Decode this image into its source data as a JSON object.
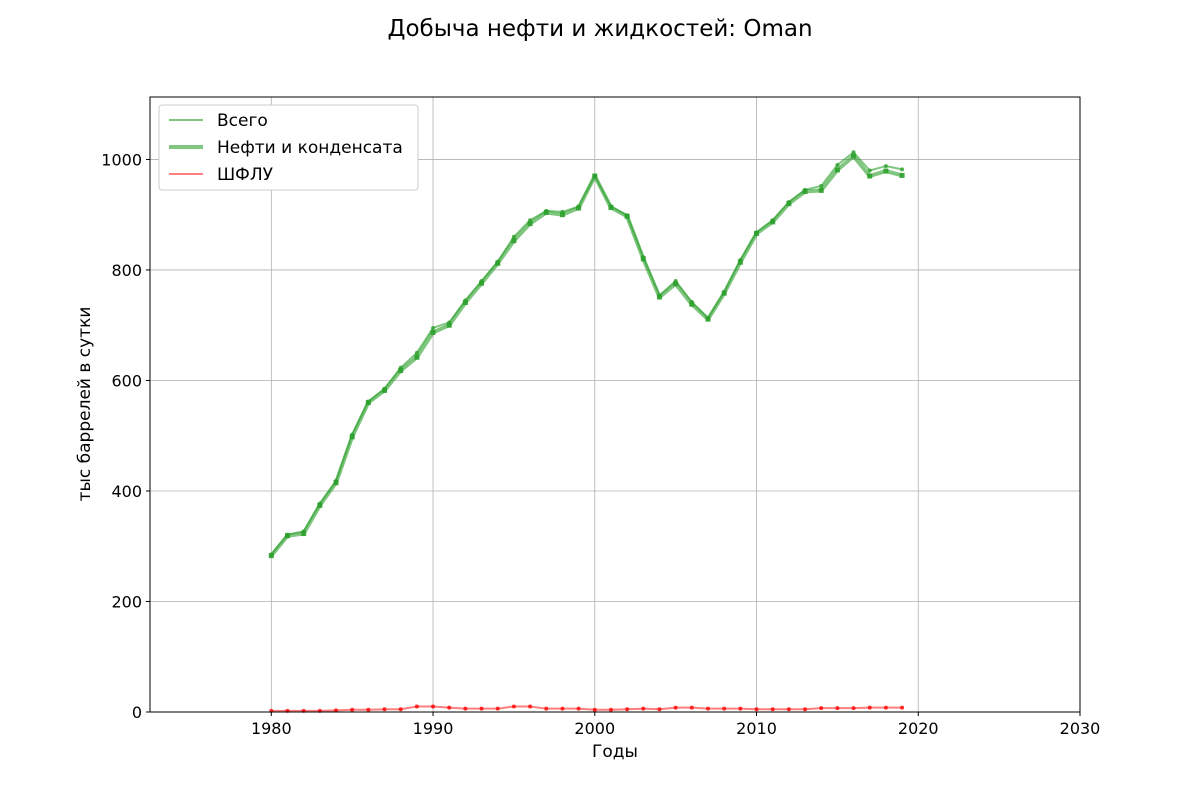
{
  "chart_data": {
    "type": "line",
    "title": "Добыча нефти и жидкостей: Oman",
    "xlabel": "Годы",
    "ylabel": "тыс баррелей в сутки",
    "xlim": [
      1972.5,
      2030
    ],
    "ylim": [
      0,
      1113
    ],
    "x_ticks": [
      1980,
      1990,
      2000,
      2010,
      2020,
      2030
    ],
    "y_ticks": [
      0,
      200,
      400,
      600,
      800,
      1000
    ],
    "grid": true,
    "legend_position": "top-left",
    "x": [
      1980,
      1981,
      1982,
      1983,
      1984,
      1985,
      1986,
      1987,
      1988,
      1989,
      1990,
      1991,
      1992,
      1993,
      1994,
      1995,
      1996,
      1997,
      1998,
      1999,
      2000,
      2001,
      2002,
      2003,
      2004,
      2005,
      2006,
      2007,
      2008,
      2009,
      2010,
      2011,
      2012,
      2013,
      2014,
      2015,
      2016,
      2017,
      2018,
      2019
    ],
    "series": [
      {
        "name": "Всего",
        "color": "#2ca02c",
        "values": [
          285,
          321,
          327,
          377,
          418,
          502,
          562,
          585,
          623,
          650,
          695,
          705,
          745,
          780,
          815,
          860,
          890,
          907,
          905,
          915,
          970,
          915,
          899,
          823,
          754,
          780,
          742,
          713,
          760,
          818,
          868,
          890,
          923,
          945,
          952,
          990,
          1013,
          980,
          988,
          982
        ]
      },
      {
        "name": "Нефти и конденсата",
        "color": "#2ca02c",
        "values": [
          283,
          319,
          323,
          374,
          415,
          498,
          560,
          582,
          618,
          642,
          687,
          700,
          741,
          776,
          812,
          853,
          884,
          904,
          900,
          912,
          970,
          913,
          897,
          820,
          751,
          775,
          738,
          711,
          758,
          814,
          866,
          887,
          920,
          942,
          944,
          981,
          1006,
          970,
          979,
          971
        ]
      },
      {
        "name": "ШФЛУ",
        "color": "#ff0000",
        "values": [
          2,
          2,
          2,
          2,
          3,
          4,
          4,
          5,
          5,
          10,
          10,
          8,
          6,
          6,
          6,
          10,
          10,
          6,
          6,
          6,
          4,
          4,
          5,
          6,
          5,
          8,
          8,
          6,
          6,
          6,
          5,
          5,
          5,
          5,
          7,
          7,
          7,
          8,
          8,
          8
        ]
      }
    ]
  }
}
